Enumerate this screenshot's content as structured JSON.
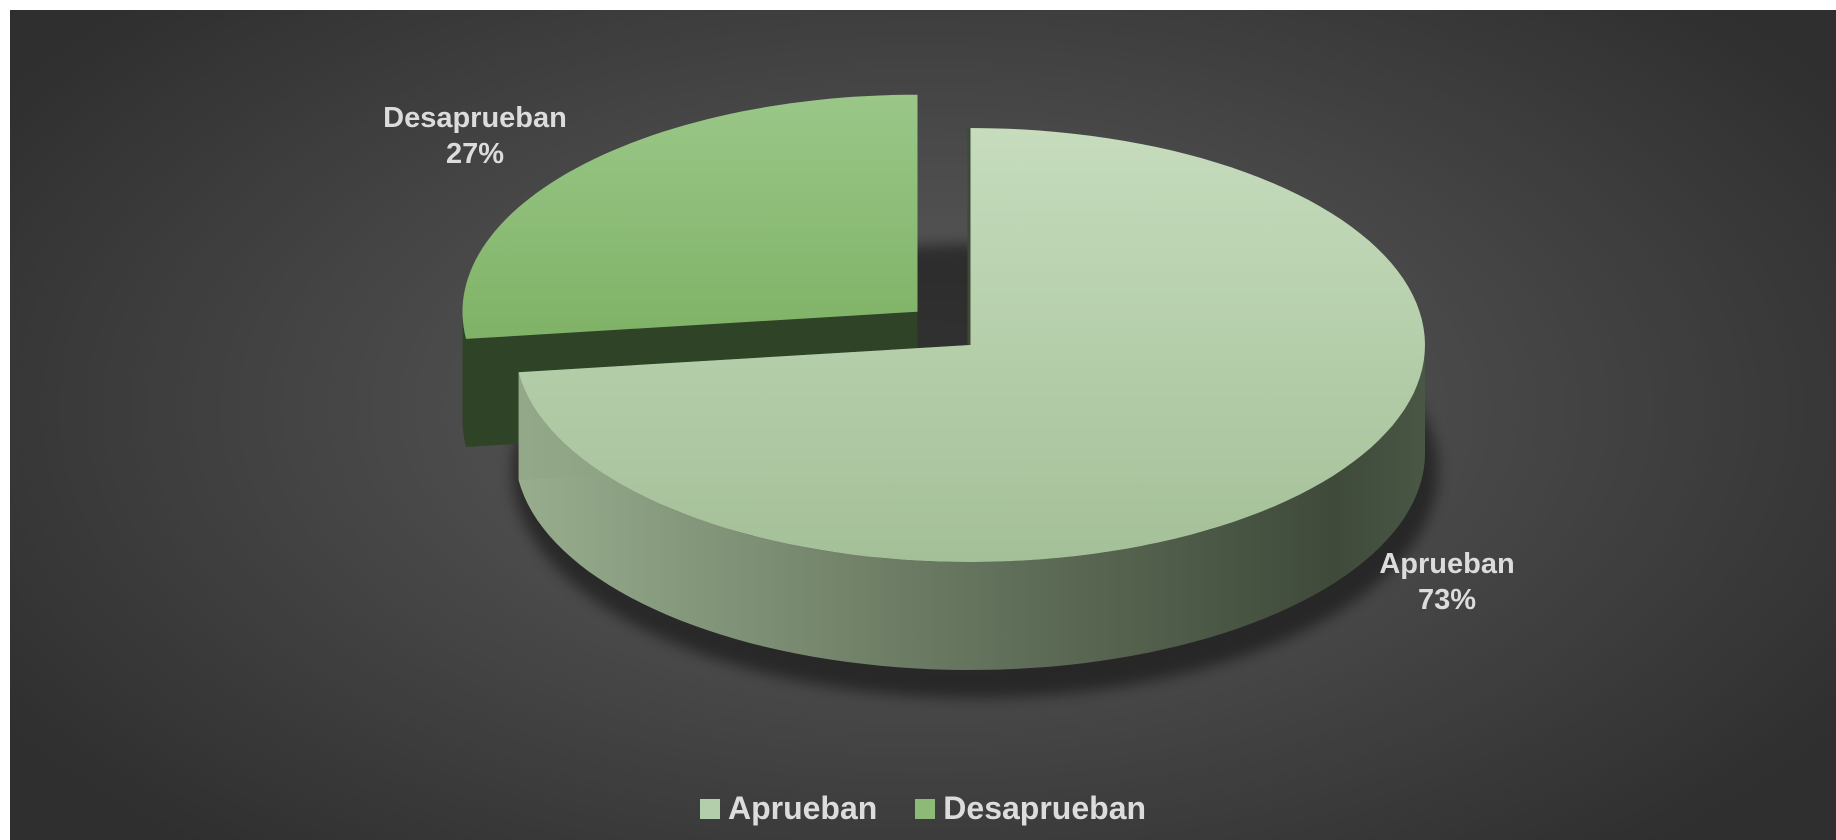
{
  "chart_data": {
    "type": "pie",
    "style": "3d-exploded",
    "categories": [
      "Aprueban",
      "Desaprueban"
    ],
    "values": [
      73,
      27
    ],
    "labels": [
      {
        "name": "Aprueban",
        "value": "73%"
      },
      {
        "name": "Desaprueban",
        "value": "27%"
      }
    ],
    "colors": [
      "#b3ceaa",
      "#8dba76"
    ],
    "legend_position": "bottom"
  }
}
